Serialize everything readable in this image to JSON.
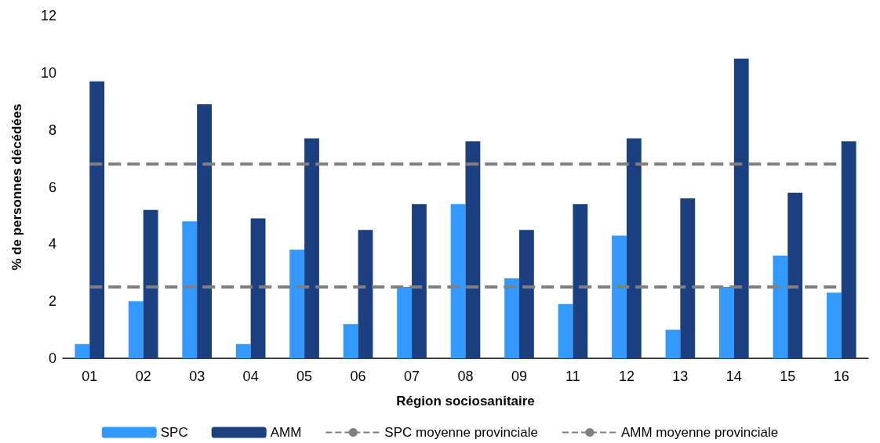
{
  "chart_data": {
    "type": "bar",
    "xlabel": "Région sociosanitaire",
    "ylabel": "% de personnes décédées",
    "categories": [
      "01",
      "02",
      "03",
      "04",
      "05",
      "06",
      "07",
      "08",
      "09",
      "11",
      "12",
      "13",
      "14",
      "15",
      "16"
    ],
    "series": [
      {
        "name": "SPC",
        "color": "#3399ff",
        "values": [
          0.5,
          2.0,
          4.8,
          0.5,
          3.8,
          1.2,
          2.5,
          5.4,
          2.8,
          1.9,
          4.3,
          1.0,
          2.5,
          3.6,
          2.3
        ]
      },
      {
        "name": "AMM",
        "color": "#1c3f80",
        "values": [
          9.7,
          5.2,
          8.9,
          4.9,
          7.7,
          4.5,
          5.4,
          7.6,
          4.5,
          5.4,
          7.7,
          5.6,
          10.5,
          5.8,
          7.6
        ]
      },
      {
        "name": "SPC moyenne provinciale",
        "type": "line",
        "color": "#808080",
        "line_style": "dashed",
        "marker": "none",
        "values": [
          2.5,
          2.5,
          2.5,
          2.5,
          2.5,
          2.5,
          2.5,
          2.5,
          2.5,
          2.5,
          2.5,
          2.5,
          2.5,
          2.5,
          2.5
        ]
      },
      {
        "name": "AMM moyenne provinciale",
        "type": "line",
        "color": "#808080",
        "line_style": "dashed",
        "marker": "none",
        "values": [
          6.8,
          6.8,
          6.8,
          6.8,
          6.8,
          6.8,
          6.8,
          6.8,
          6.8,
          6.8,
          6.8,
          6.8,
          6.8,
          6.8,
          6.8
        ]
      }
    ],
    "ylim": [
      0,
      12
    ],
    "yticks": [
      0,
      2,
      4,
      6,
      8,
      10,
      12
    ],
    "grid": false,
    "legend": "bottom"
  }
}
